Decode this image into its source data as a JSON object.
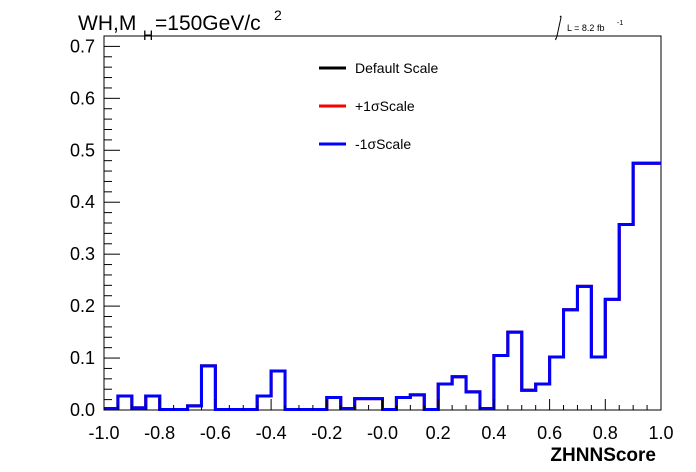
{
  "title_main": "WH,M",
  "title_sub": "H",
  "title_rest": "=150GeV/c",
  "title_sup": "2",
  "lumi_text": "L = 8.2 fb",
  "lumi_sup": "-1",
  "chart_data": {
    "type": "line",
    "xlabel": "ZHNNScore",
    "ylabel": "",
    "xlim": [
      -1.0,
      1.0
    ],
    "ylim": [
      0,
      0.72
    ],
    "xticks": [
      "-1.0",
      "-0.8",
      "-0.6",
      "-0.4",
      "-0.2",
      "-0.0",
      "0.2",
      "0.4",
      "0.6",
      "0.8",
      "1.0"
    ],
    "yticks": [
      "0.0",
      "0.1",
      "0.2",
      "0.3",
      "0.4",
      "0.5",
      "0.6",
      "0.7"
    ],
    "bin_edges": [
      -1.0,
      -0.95,
      -0.9,
      -0.85,
      -0.8,
      -0.75,
      -0.7,
      -0.65,
      -0.6,
      -0.55,
      -0.5,
      -0.45,
      -0.4,
      -0.35,
      -0.3,
      -0.25,
      -0.2,
      -0.15,
      -0.1,
      -0.05,
      0.0,
      0.05,
      0.1,
      0.15,
      0.2,
      0.25,
      0.3,
      0.35,
      0.4,
      0.45,
      0.5,
      0.55,
      0.6,
      0.65,
      0.7,
      0.75,
      0.8,
      0.85,
      0.9,
      0.95,
      1.0
    ],
    "series": [
      {
        "name": "Default Scale",
        "color": "#000000",
        "values": [
          0.003,
          0.027,
          0.004,
          0.027,
          0.001,
          0.001,
          0.008,
          0.085,
          0.001,
          0.001,
          0.001,
          0.027,
          0.075,
          0.001,
          0.001,
          0.001,
          0.024,
          0.003,
          0.022,
          0.022,
          0.001,
          0.024,
          0.029,
          0.001,
          0.05,
          0.064,
          0.035,
          0.003,
          0.105,
          0.15,
          0.038,
          0.05,
          0.102,
          0.193,
          0.238,
          0.102,
          0.213,
          0.357,
          0.475,
          0.475
        ]
      },
      {
        "name": "+1σScale",
        "color": "#ff0000",
        "values": [
          0.003,
          0.027,
          0.004,
          0.027,
          0.001,
          0.001,
          0.008,
          0.085,
          0.001,
          0.001,
          0.001,
          0.027,
          0.075,
          0.001,
          0.001,
          0.001,
          0.024,
          0.003,
          0.022,
          0.022,
          0.001,
          0.024,
          0.029,
          0.001,
          0.05,
          0.064,
          0.035,
          0.003,
          0.105,
          0.15,
          0.038,
          0.05,
          0.102,
          0.193,
          0.238,
          0.102,
          0.213,
          0.357,
          0.475,
          0.475
        ]
      },
      {
        "name": "-1σScale",
        "color": "#0000ff",
        "values": [
          0.003,
          0.027,
          0.004,
          0.027,
          0.001,
          0.001,
          0.008,
          0.085,
          0.001,
          0.001,
          0.001,
          0.027,
          0.075,
          0.001,
          0.001,
          0.001,
          0.024,
          0.003,
          0.022,
          0.022,
          0.001,
          0.024,
          0.029,
          0.001,
          0.05,
          0.064,
          0.035,
          0.003,
          0.105,
          0.15,
          0.038,
          0.05,
          0.102,
          0.193,
          0.238,
          0.102,
          0.213,
          0.357,
          0.475,
          0.475
        ]
      }
    ],
    "legend_position": "top-center",
    "grid": false
  }
}
